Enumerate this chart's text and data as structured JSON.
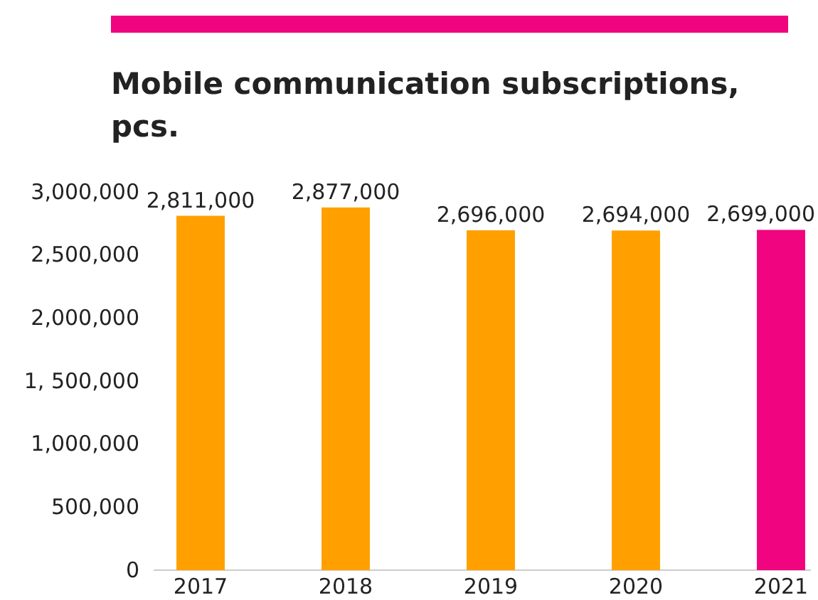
{
  "chart_data": {
    "type": "bar",
    "title": "Mobile communication subscriptions, pcs.",
    "categories": [
      "2017",
      "2018",
      "2019",
      "2020",
      "2021"
    ],
    "values": [
      2811000,
      2877000,
      2696000,
      2694000,
      2699000
    ],
    "colors": [
      "#ffa000",
      "#ffa000",
      "#ffa000",
      "#ffa000",
      "#f0047f"
    ],
    "ylim": [
      0,
      3000000
    ],
    "yticks": [
      {
        "value": 0,
        "label": "0"
      },
      {
        "value": 500000,
        "label": "500,000"
      },
      {
        "value": 1000000,
        "label": "1,000,000"
      },
      {
        "value": 1500000,
        "label": "1, 500,000"
      },
      {
        "value": 2000000,
        "label": "2,000,000"
      },
      {
        "value": 2500000,
        "label": "2,500,000"
      },
      {
        "value": 3000000,
        "label": "3,000,000"
      }
    ],
    "value_labels": [
      "2,811,000",
      "2,877,000",
      "2,696,000",
      "2,694,000",
      "2,699,000"
    ],
    "grid": false
  }
}
